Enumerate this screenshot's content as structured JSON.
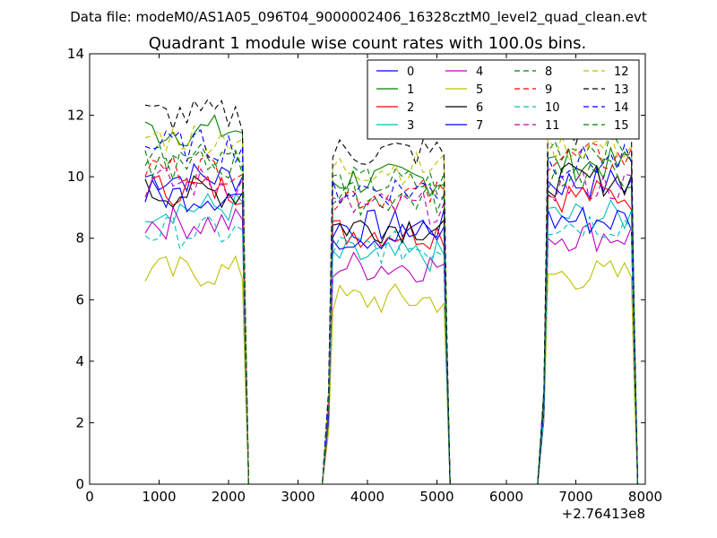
{
  "suptitle": "Data file: modeM0/AS1A05_096T04_9000002406_16328cztM0_level2_quad_clean.evt",
  "chart_data": {
    "type": "line",
    "title": "Quadrant 1 module wise count rates with 100.0s bins.",
    "xlabel": "",
    "ylabel": "",
    "x_offset_label": "+2.76413e8",
    "xlim": [
      0,
      8000
    ],
    "ylim": [
      0,
      14
    ],
    "xticks": [
      0,
      1000,
      2000,
      3000,
      4000,
      5000,
      6000,
      7000,
      8000
    ],
    "yticks": [
      0,
      2,
      4,
      6,
      8,
      10,
      12,
      14
    ],
    "legend_position": "top-right",
    "legend_columns": 4,
    "segments": [
      {
        "x_start": 800,
        "x_end": 2200
      },
      {
        "x_start": 3500,
        "x_end": 5100
      },
      {
        "x_start": 6600,
        "x_end": 7800
      }
    ],
    "series": [
      {
        "name": "0",
        "color": "#0000ff",
        "dash": false,
        "levels": [
          10.0,
          8.4,
          9.8
        ]
      },
      {
        "name": "1",
        "color": "#008000",
        "dash": false,
        "levels": [
          11.5,
          9.9,
          10.4
        ]
      },
      {
        "name": "2",
        "color": "#ff0000",
        "dash": false,
        "levels": [
          9.6,
          8.2,
          9.4
        ]
      },
      {
        "name": "3",
        "color": "#00bfbf",
        "dash": false,
        "levels": [
          9.0,
          7.4,
          8.7
        ]
      },
      {
        "name": "4",
        "color": "#bf00bf",
        "dash": false,
        "levels": [
          8.5,
          7.1,
          8.1
        ]
      },
      {
        "name": "5",
        "color": "#bfbf00",
        "dash": false,
        "levels": [
          6.9,
          6.0,
          6.8
        ]
      },
      {
        "name": "6",
        "color": "#000000",
        "dash": false,
        "levels": [
          9.5,
          8.4,
          9.9
        ]
      },
      {
        "name": "7",
        "color": "#0000ff",
        "dash": false,
        "levels": [
          9.4,
          8.1,
          8.6
        ]
      },
      {
        "name": "8",
        "color": "#008000",
        "dash": true,
        "levels": [
          10.8,
          9.8,
          11.0
        ]
      },
      {
        "name": "9",
        "color": "#ff0000",
        "dash": true,
        "levels": [
          10.3,
          9.4,
          10.6
        ]
      },
      {
        "name": "10",
        "color": "#00bfbf",
        "dash": true,
        "levels": [
          8.2,
          7.7,
          8.5
        ]
      },
      {
        "name": "11",
        "color": "#bf00bf",
        "dash": true,
        "levels": [
          9.8,
          9.0,
          9.7
        ]
      },
      {
        "name": "12",
        "color": "#bfbf00",
        "dash": true,
        "levels": [
          11.3,
          10.3,
          11.0
        ]
      },
      {
        "name": "13",
        "color": "#000000",
        "dash": true,
        "levels": [
          12.0,
          10.8,
          11.5
        ]
      },
      {
        "name": "14",
        "color": "#0000ff",
        "dash": true,
        "levels": [
          11.0,
          9.6,
          10.5
        ]
      },
      {
        "name": "15",
        "color": "#008000",
        "dash": true,
        "levels": [
          10.4,
          9.3,
          10.1
        ]
      }
    ]
  }
}
